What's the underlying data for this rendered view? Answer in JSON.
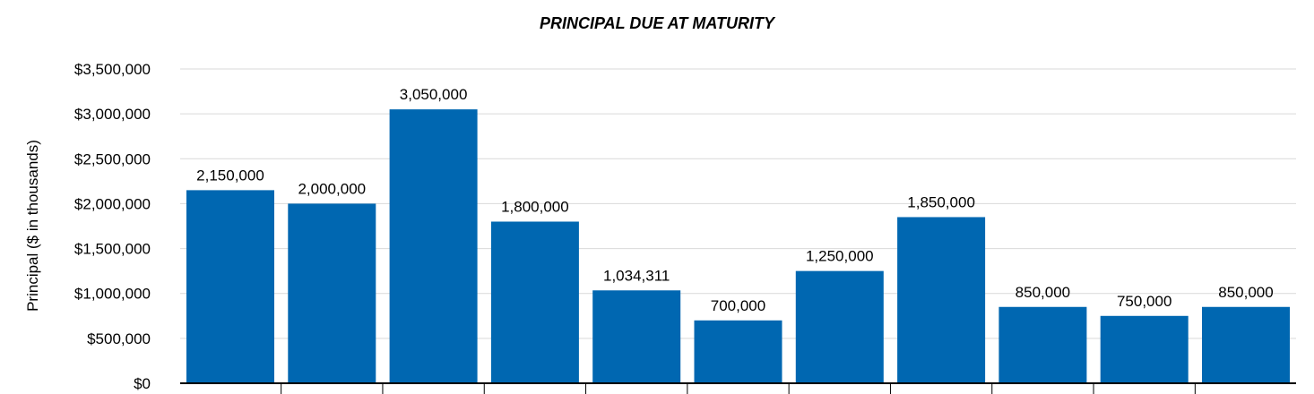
{
  "chart_data": {
    "type": "bar",
    "title": "PRINCIPAL DUE AT MATURITY",
    "ylabel": "Principal ($ in thousands)",
    "xlabel": "",
    "ylim": [
      0,
      3500000
    ],
    "yticks": [
      0,
      500000,
      1000000,
      1500000,
      2000000,
      2500000,
      3000000,
      3500000
    ],
    "ytick_labels": [
      "$0",
      "$500,000",
      "$1,000,000",
      "$1,500,000",
      "$2,000,000",
      "$2,500,000",
      "$3,000,000",
      "$3,500,000"
    ],
    "values": [
      2150000,
      2000000,
      3050000,
      1800000,
      1034311,
      700000,
      1250000,
      1850000,
      850000,
      750000,
      850000
    ],
    "data_labels": [
      "2,150,000",
      "2,000,000",
      "3,050,000",
      "1,800,000",
      "1,034,311",
      "700,000",
      "1,250,000",
      "1,850,000",
      "850,000",
      "750,000",
      "850,000"
    ],
    "grid": true,
    "bar_color": "#0067b1",
    "grid_color": "#d9d9d9",
    "axis_color": "#000000"
  }
}
